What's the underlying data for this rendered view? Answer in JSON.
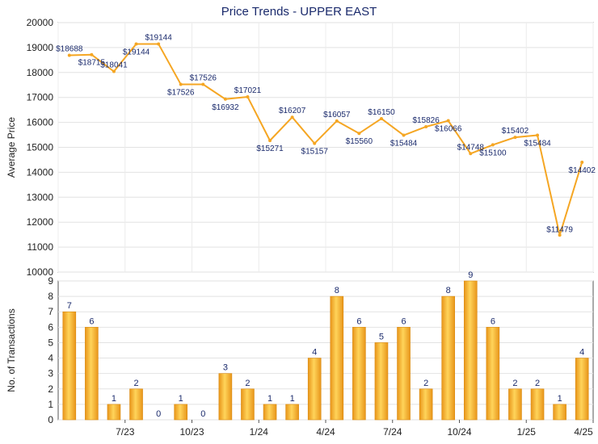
{
  "title": "Price Trends - UPPER EAST",
  "chart_data": [
    {
      "type": "line",
      "ylabel": "Average Price",
      "ylim": [
        10000,
        20000
      ],
      "yticks": [
        10000,
        11000,
        12000,
        13000,
        14000,
        15000,
        16000,
        17000,
        18000,
        19000,
        20000
      ],
      "grid": true,
      "color": "#f5a623",
      "values": [
        18688,
        18715,
        18041,
        19144,
        19144,
        17526,
        17526,
        16932,
        17021,
        15271,
        16207,
        15157,
        16057,
        15560,
        16150,
        15484,
        15826,
        16066,
        14748,
        15100,
        15402,
        15484,
        11479,
        14402
      ],
      "labels": [
        "$18688",
        "$18715",
        "$18041",
        "$19144",
        "$19144",
        "$17526",
        "$17526",
        "$16932",
        "$17021",
        "$15271",
        "$16207",
        "$15157",
        "$16057",
        "$15560",
        "$16150",
        "$15484",
        "$15826",
        "$16066",
        "$14748",
        "$15100",
        "$15402",
        "$15484",
        "$11479",
        "$14402"
      ]
    },
    {
      "type": "bar",
      "ylabel": "No. of Transactions",
      "ylim": [
        0,
        9
      ],
      "yticks": [
        0,
        1,
        2,
        3,
        4,
        5,
        6,
        7,
        8,
        9
      ],
      "grid": true,
      "color": "#f5a623",
      "values": [
        7,
        6,
        1,
        2,
        0,
        1,
        0,
        3,
        2,
        1,
        1,
        4,
        8,
        6,
        5,
        6,
        2,
        8,
        9,
        6,
        2,
        2,
        1,
        4
      ],
      "xticks": [
        "7/23",
        "10/23",
        "1/24",
        "4/24",
        "7/24",
        "10/24",
        "1/25",
        "4/25"
      ]
    }
  ]
}
